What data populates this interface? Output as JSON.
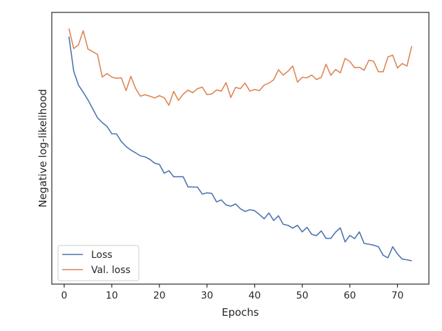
{
  "chart_data": {
    "type": "line",
    "title": "",
    "xlabel": "Epochs",
    "ylabel": "Negative log-likelihood",
    "xlim": [
      -2.6,
      76.6
    ],
    "ylim": [
      0,
      1
    ],
    "x_ticks": [
      0,
      10,
      20,
      30,
      40,
      50,
      60,
      70
    ],
    "x_tick_labels": [
      "0",
      "10",
      "20",
      "30",
      "40",
      "50",
      "60",
      "70"
    ],
    "y_ticks_visible": false,
    "grid": false,
    "legend": {
      "position": "lower-left"
    },
    "x": [
      1,
      2,
      3,
      4,
      5,
      6,
      7,
      8,
      9,
      10,
      11,
      12,
      13,
      14,
      15,
      16,
      17,
      18,
      19,
      20,
      21,
      22,
      23,
      24,
      25,
      26,
      27,
      28,
      29,
      30,
      31,
      32,
      33,
      34,
      35,
      36,
      37,
      38,
      39,
      40,
      41,
      42,
      43,
      44,
      45,
      46,
      47,
      48,
      49,
      50,
      51,
      52,
      53,
      54,
      55,
      56,
      57,
      58,
      59,
      60,
      61,
      62,
      63,
      64,
      65,
      66,
      67,
      68,
      69,
      70,
      71,
      72,
      73
    ],
    "series": [
      {
        "name": "Loss",
        "color": "#4c72b0",
        "values": [
          0.937,
          0.8,
          0.744,
          0.716,
          0.685,
          0.65,
          0.614,
          0.595,
          0.58,
          0.551,
          0.55,
          0.52,
          0.5,
          0.486,
          0.475,
          0.463,
          0.459,
          0.449,
          0.434,
          0.429,
          0.394,
          0.404,
          0.38,
          0.38,
          0.38,
          0.34,
          0.339,
          0.339,
          0.311,
          0.316,
          0.314,
          0.28,
          0.288,
          0.268,
          0.263,
          0.272,
          0.253,
          0.242,
          0.249,
          0.245,
          0.23,
          0.213,
          0.236,
          0.206,
          0.225,
          0.191,
          0.187,
          0.176,
          0.187,
          0.161,
          0.179,
          0.151,
          0.146,
          0.165,
          0.135,
          0.135,
          0.16,
          0.177,
          0.121,
          0.147,
          0.134,
          0.161,
          0.115,
          0.112,
          0.108,
          0.102,
          0.068,
          0.058,
          0.102,
          0.073,
          0.053,
          0.05,
          0.046
        ]
      },
      {
        "name": "Val. loss",
        "color": "#dd8452",
        "values": [
          0.969,
          0.889,
          0.904,
          0.96,
          0.887,
          0.877,
          0.866,
          0.776,
          0.79,
          0.776,
          0.771,
          0.773,
          0.722,
          0.779,
          0.731,
          0.7,
          0.706,
          0.7,
          0.693,
          0.702,
          0.694,
          0.664,
          0.719,
          0.683,
          0.708,
          0.724,
          0.714,
          0.73,
          0.736,
          0.706,
          0.709,
          0.725,
          0.72,
          0.754,
          0.695,
          0.735,
          0.73,
          0.752,
          0.72,
          0.727,
          0.722,
          0.744,
          0.752,
          0.765,
          0.805,
          0.784,
          0.799,
          0.82,
          0.756,
          0.775,
          0.773,
          0.784,
          0.766,
          0.775,
          0.827,
          0.783,
          0.806,
          0.793,
          0.85,
          0.838,
          0.813,
          0.815,
          0.803,
          0.843,
          0.839,
          0.797,
          0.797,
          0.856,
          0.863,
          0.812,
          0.83,
          0.82,
          0.899
        ]
      }
    ]
  }
}
